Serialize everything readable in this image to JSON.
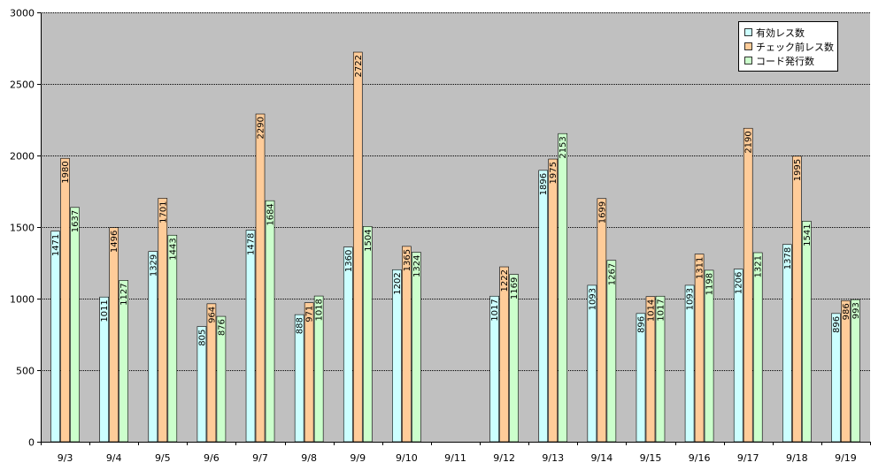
{
  "chart_data": {
    "type": "bar",
    "categories": [
      "9/3",
      "9/4",
      "9/5",
      "9/6",
      "9/7",
      "9/8",
      "9/9",
      "9/10",
      "9/11",
      "9/12",
      "9/13",
      "9/14",
      "9/15",
      "9/16",
      "9/17",
      "9/18",
      "9/19"
    ],
    "series": [
      {
        "name": "有効レス数",
        "color": "#ccffff",
        "values": [
          1471,
          1011,
          1329,
          805,
          1478,
          888,
          1360,
          1202,
          null,
          1017,
          1896,
          1093,
          896,
          1093,
          1206,
          1378,
          896
        ]
      },
      {
        "name": "チェック前レス数",
        "color": "#ffcc99",
        "values": [
          1980,
          1496,
          1701,
          964,
          2290,
          971,
          2722,
          1365,
          null,
          1222,
          1975,
          1699,
          1014,
          1311,
          2190,
          1995,
          986
        ]
      },
      {
        "name": "コード発行数",
        "color": "#ccffcc",
        "values": [
          1637,
          1127,
          1443,
          876,
          1684,
          1018,
          1504,
          1324,
          null,
          1169,
          2153,
          1267,
          1017,
          1198,
          1321,
          1541,
          993
        ]
      }
    ],
    "ylim": [
      0,
      3000
    ],
    "yticks": [
      0,
      500,
      1000,
      1500,
      2000,
      2500,
      3000
    ],
    "ytick_labels": [
      "0",
      "500",
      "1000",
      "1500",
      "2000",
      "2500",
      "3000"
    ],
    "grid": true,
    "legend": "top-right",
    "title": "",
    "xlabel": "",
    "ylabel": ""
  }
}
